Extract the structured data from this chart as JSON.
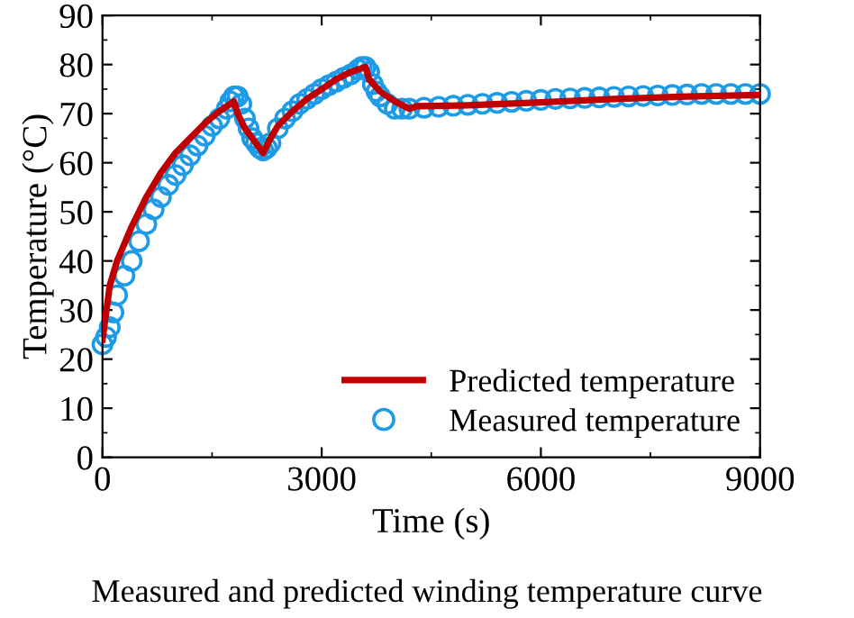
{
  "chart_data": {
    "type": "line",
    "xlabel": "Time (s)",
    "ylabel": "Temperature (°C)",
    "xlim": [
      0,
      9000
    ],
    "xticks": [
      0,
      3000,
      6000,
      9000
    ],
    "ylim": [
      0,
      90
    ],
    "yticks": [
      0,
      10,
      20,
      30,
      40,
      50,
      60,
      70,
      80,
      90
    ],
    "grid": false,
    "legend": "bottom right",
    "annotations": [
      "Measured and predicted winding temperature curve"
    ],
    "series": [
      {
        "name": "Measured temperature",
        "type": "scatter",
        "marker": "circle",
        "color": "#1e9be6",
        "x": [
          0,
          50,
          100,
          150,
          200,
          300,
          400,
          500,
          600,
          700,
          800,
          900,
          1000,
          1100,
          1200,
          1300,
          1400,
          1500,
          1600,
          1700,
          1750,
          1800,
          1850,
          1900,
          1950,
          2000,
          2050,
          2100,
          2150,
          2200,
          2250,
          2300,
          2400,
          2500,
          2600,
          2700,
          2800,
          2900,
          3000,
          3100,
          3200,
          3300,
          3400,
          3500,
          3550,
          3600,
          3650,
          3700,
          3750,
          3800,
          3900,
          4000,
          4100,
          4200,
          4400,
          4600,
          4800,
          5000,
          5200,
          5400,
          5600,
          5800,
          6000,
          6200,
          6400,
          6600,
          6800,
          7000,
          7200,
          7400,
          7600,
          7800,
          8000,
          8200,
          8400,
          8600,
          8800,
          9000
        ],
        "values": [
          23,
          24.5,
          26.5,
          29.5,
          33,
          37,
          40,
          44,
          47.5,
          50.5,
          53,
          55.5,
          57.5,
          59.5,
          61.5,
          63.5,
          65.5,
          67.5,
          69,
          71,
          72.5,
          73.5,
          73.5,
          72,
          69,
          67,
          65,
          64,
          63,
          62.5,
          63,
          64,
          67,
          69,
          70.5,
          72,
          73,
          74,
          75,
          75.8,
          76.5,
          77.3,
          78,
          79,
          79.5,
          79.5,
          78.5,
          76,
          74.5,
          73.5,
          72,
          71,
          71,
          71,
          71.2,
          71.4,
          71.6,
          71.8,
          72,
          72.2,
          72.4,
          72.6,
          72.8,
          73,
          73.1,
          73.2,
          73.3,
          73.4,
          73.5,
          73.6,
          73.7,
          73.8,
          73.9,
          74,
          74,
          74,
          74,
          74
        ]
      },
      {
        "name": "Predicted temperature",
        "color": "#c00000",
        "x": [
          0,
          100,
          200,
          400,
          600,
          800,
          1000,
          1200,
          1400,
          1600,
          1800,
          1850,
          1950,
          2100,
          2200,
          2300,
          2400,
          2600,
          2800,
          3000,
          3200,
          3400,
          3600,
          3650,
          3800,
          4000,
          4200,
          4300,
          5000,
          6000,
          7000,
          8000,
          9000
        ],
        "values": [
          24,
          35,
          40,
          47,
          53,
          58,
          62,
          65,
          68,
          70.5,
          72.5,
          70,
          67,
          64,
          62,
          65,
          67.5,
          70.5,
          73,
          75,
          77,
          78.5,
          79.5,
          77,
          74.5,
          72.5,
          71,
          71.5,
          71.7,
          72.3,
          73,
          73.5,
          73.8
        ]
      }
    ]
  }
}
